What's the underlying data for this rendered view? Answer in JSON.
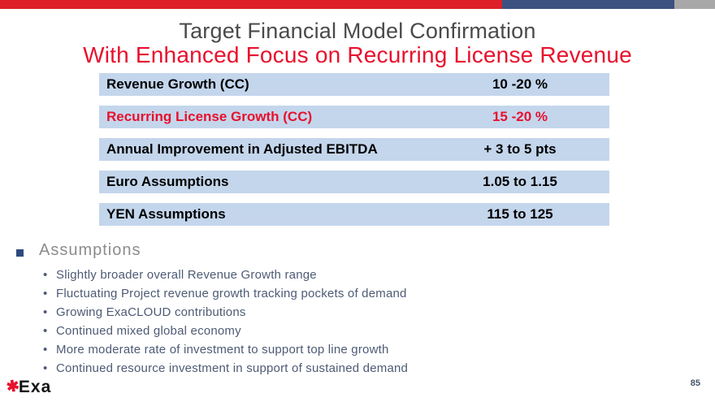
{
  "header": {
    "title": "Target Financial Model Confirmation",
    "subtitle": "With Enhanced Focus on Recurring License Revenue"
  },
  "table": {
    "rows": [
      {
        "label": "Revenue Growth (CC)",
        "value": "10 -20 %",
        "highlight": false
      },
      {
        "label": "Recurring License Growth (CC)",
        "value": "15 -20 %",
        "highlight": true
      },
      {
        "label": "Annual Improvement in Adjusted EBITDA",
        "value": "+ 3 to 5 pts",
        "highlight": false
      },
      {
        "label": "Euro Assumptions",
        "value": "1.05 to 1.15",
        "highlight": false
      },
      {
        "label": "YEN Assumptions",
        "value": "115 to 125",
        "highlight": false
      }
    ]
  },
  "assumptions": {
    "heading": "Assumptions",
    "bullets": [
      "Slightly broader overall Revenue Growth range",
      "Fluctuating Project revenue growth tracking pockets of demand",
      "Growing ExaCLOUD contributions",
      "Continued mixed global economy",
      "More moderate rate of investment to support top line growth",
      "Continued resource investment in support of sustained demand"
    ]
  },
  "footer": {
    "logo_star": "✱",
    "logo_text": "Exa",
    "page_number": "85"
  },
  "colors": {
    "highlight_red": "#e8112d",
    "row_background": "#c4d6ec",
    "top_bar_red": "#dd2027",
    "top_bar_blue": "#3c5180",
    "top_bar_gray": "#a8a8a8",
    "title_gray": "#4a4a4a",
    "bullet_text": "#4e5b75",
    "page_number": "#44546a"
  }
}
